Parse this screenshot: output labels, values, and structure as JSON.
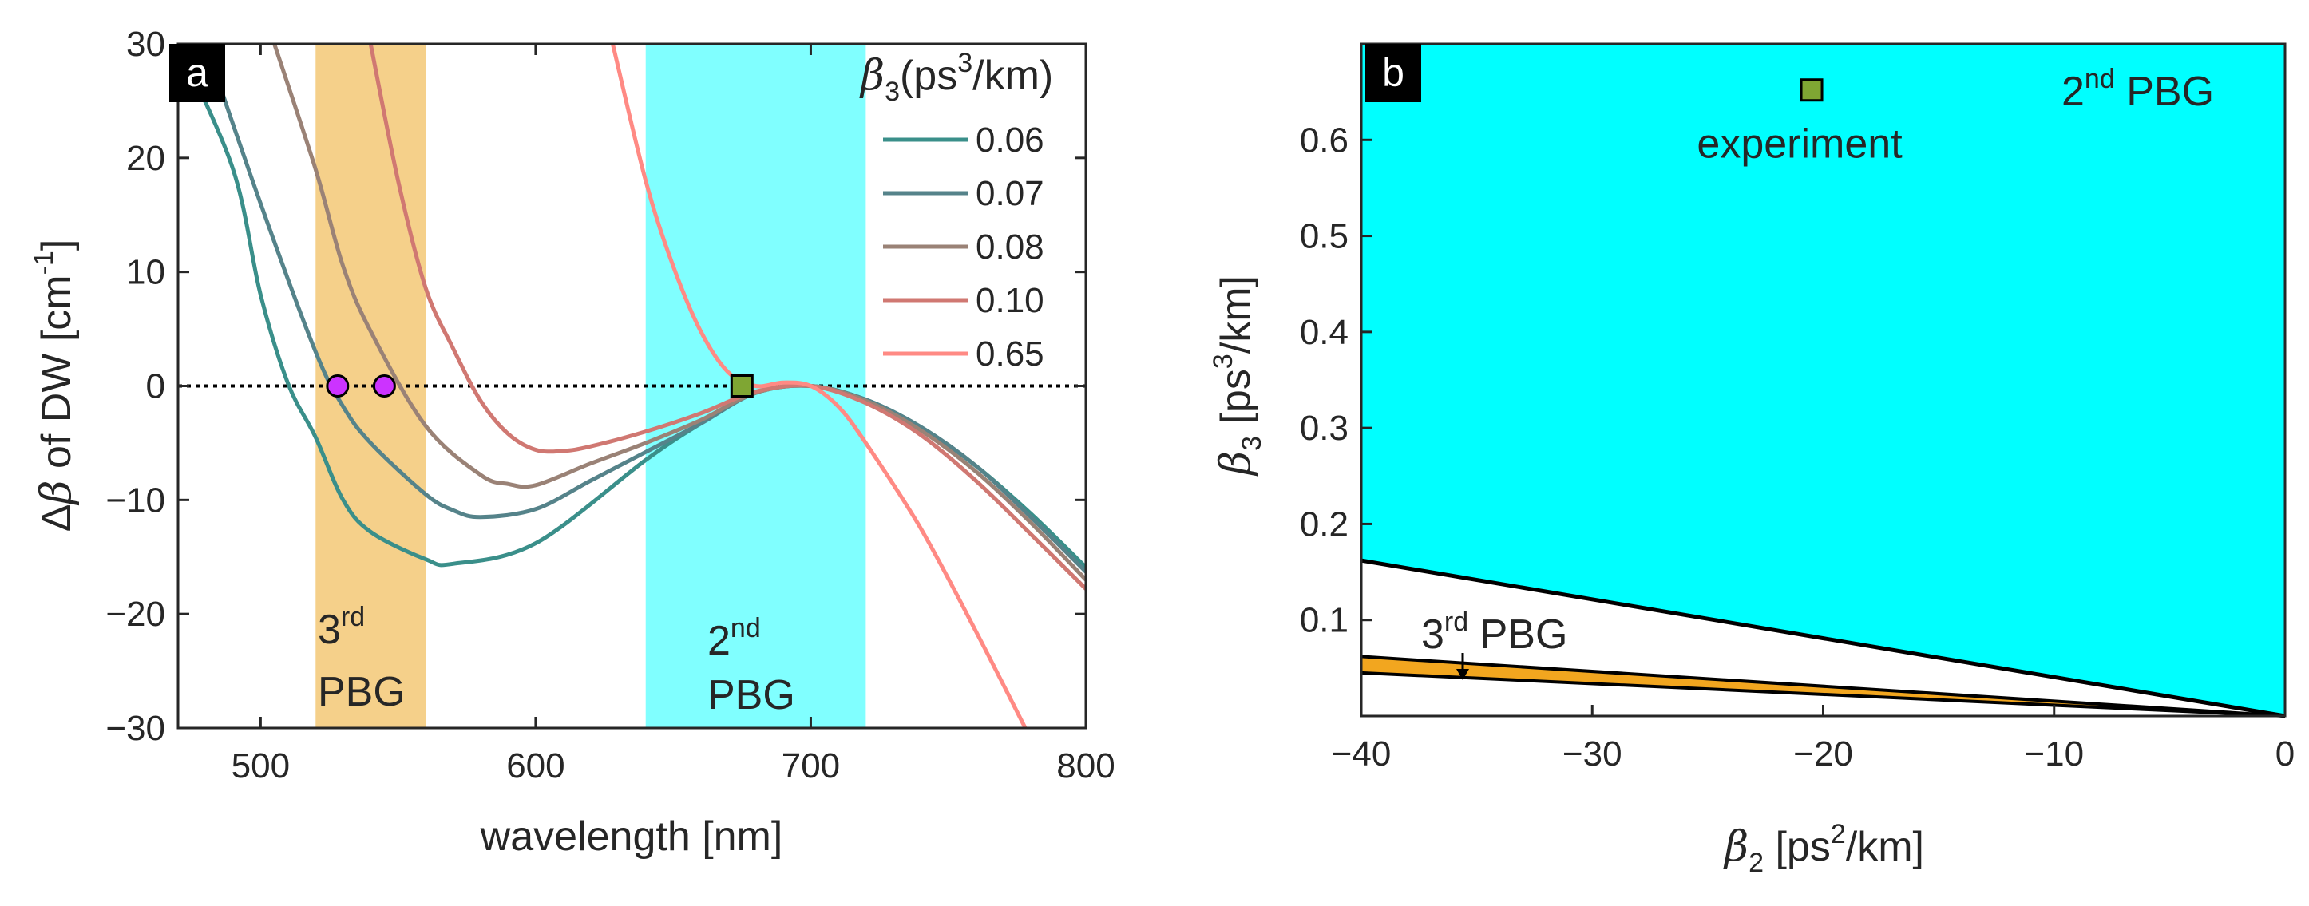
{
  "chart_data": [
    {
      "panel": "a",
      "type": "line",
      "xlabel": "wavelength [nm]",
      "ylabel": {
        "prefix": "Δ",
        "sym": "β",
        "rest": " of DW [cm",
        "sup": "-1",
        "close": "]"
      },
      "xlim": [
        470,
        800
      ],
      "ylim": [
        -30,
        30
      ],
      "xticks": [
        "500",
        "600",
        "700",
        "800"
      ],
      "yticks": [
        "30",
        "20",
        "10",
        "0",
        "−10",
        "−20",
        "−30"
      ],
      "bands": [
        {
          "name": "3rd PBG",
          "x": [
            520,
            560
          ],
          "color": "#f5d08a",
          "line1": "3",
          "sup": "rd",
          "line2": "PBG"
        },
        {
          "name": "2nd PBG",
          "x": [
            640,
            720
          ],
          "color": "#80ffff",
          "line1": "2",
          "sup": "nd",
          "line2": "PBG"
        }
      ],
      "zero_line": true,
      "legend": {
        "title_sym": "β",
        "title_sub": "3",
        "title_rest": "(ps",
        "title_sup": "3",
        "title_end": "/km)"
      },
      "series": [
        {
          "name": "0.06",
          "color": "#3a8f8a",
          "points": [
            [
              470,
              30
            ],
            [
              490,
              19
            ],
            [
              500,
              8
            ],
            [
              510,
              0.2
            ],
            [
              520,
              -4.5
            ],
            [
              530,
              -10
            ],
            [
              540,
              -12.8
            ],
            [
              560,
              -15.2
            ],
            [
              570,
              -15.6
            ],
            [
              600,
              -13.8
            ],
            [
              640,
              -6.5
            ],
            [
              660,
              -3.3
            ],
            [
              680,
              -0.6
            ],
            [
              700,
              0
            ],
            [
              720,
              -1.2
            ],
            [
              740,
              -3.6
            ],
            [
              760,
              -7
            ],
            [
              780,
              -11.2
            ],
            [
              800,
              -15.9
            ]
          ]
        },
        {
          "name": "0.07",
          "color": "#55838a",
          "points": [
            [
              480,
              30
            ],
            [
              500,
              16
            ],
            [
              520,
              3
            ],
            [
              530,
              -1.8
            ],
            [
              540,
              -5
            ],
            [
              560,
              -9.5
            ],
            [
              570,
              -10.9
            ],
            [
              580,
              -11.5
            ],
            [
              600,
              -10.8
            ],
            [
              620,
              -8.3
            ],
            [
              640,
              -5.8
            ],
            [
              660,
              -3.3
            ],
            [
              680,
              -0.6
            ],
            [
              700,
              0
            ],
            [
              720,
              -1.2
            ],
            [
              740,
              -3.6
            ],
            [
              760,
              -7
            ],
            [
              780,
              -11.5
            ],
            [
              800,
              -16.3
            ]
          ]
        },
        {
          "name": "0.08",
          "color": "#9a8276",
          "points": [
            [
              505,
              30
            ],
            [
              520,
              19
            ],
            [
              530,
              10.5
            ],
            [
              540,
              4.8
            ],
            [
              560,
              -3.5
            ],
            [
              580,
              -7.8
            ],
            [
              590,
              -8.6
            ],
            [
              600,
              -8.7
            ],
            [
              620,
              -6.8
            ],
            [
              640,
              -5
            ],
            [
              660,
              -3
            ],
            [
              680,
              -0.6
            ],
            [
              700,
              0
            ],
            [
              720,
              -1.3
            ],
            [
              740,
              -3.9
            ],
            [
              760,
              -7.5
            ],
            [
              780,
              -12
            ],
            [
              800,
              -17
            ]
          ]
        },
        {
          "name": "0.10",
          "color": "#d07872",
          "points": [
            [
              540,
              30
            ],
            [
              550,
              18
            ],
            [
              560,
              8.6
            ],
            [
              570,
              3.3
            ],
            [
              580,
              -1.3
            ],
            [
              590,
              -4.2
            ],
            [
              600,
              -5.6
            ],
            [
              610,
              -5.7
            ],
            [
              620,
              -5.3
            ],
            [
              640,
              -4
            ],
            [
              660,
              -2.4
            ],
            [
              680,
              -0.5
            ],
            [
              700,
              0
            ],
            [
              720,
              -1.5
            ],
            [
              740,
              -4.3
            ],
            [
              760,
              -8.3
            ],
            [
              780,
              -13
            ],
            [
              800,
              -17.8
            ]
          ]
        },
        {
          "name": "0.65",
          "color": "#ff8a84",
          "points": [
            [
              628,
              30
            ],
            [
              640,
              18
            ],
            [
              650,
              10.5
            ],
            [
              660,
              4.8
            ],
            [
              670,
              1.2
            ],
            [
              680,
              0
            ],
            [
              690,
              0.3
            ],
            [
              700,
              0
            ],
            [
              710,
              -1.8
            ],
            [
              720,
              -5
            ],
            [
              740,
              -12.5
            ],
            [
              760,
              -21.5
            ],
            [
              778,
              -30
            ]
          ]
        }
      ],
      "markers": [
        {
          "x": 528,
          "y": 0,
          "shape": "circle",
          "color": "#cc33ff"
        },
        {
          "x": 545,
          "y": 0,
          "shape": "circle",
          "color": "#cc33ff"
        },
        {
          "x": 675,
          "y": 0,
          "shape": "square",
          "color": "#7fa633"
        }
      ]
    },
    {
      "panel": "b",
      "type": "area",
      "xlabel": {
        "sym": "β",
        "sub": "2",
        "rest": " [ps",
        "sup": "2",
        "end": "/km]"
      },
      "ylabel": {
        "sym": "β",
        "sub": "3",
        "rest": " [ps",
        "sup": "3",
        "end": "/km]"
      },
      "xlim": [
        -40,
        0
      ],
      "ylim": [
        0,
        0.7
      ],
      "xticks": [
        "−40",
        "−30",
        "−20",
        "−10",
        "0"
      ],
      "yticks": [
        "0.6",
        "0.5",
        "0.4",
        "0.3",
        "0.2",
        "0.1"
      ],
      "regions": [
        {
          "name": "2nd PBG",
          "color": "#00ffff",
          "lower_boundary": [
            [
              -40,
              0.162
            ],
            [
              0,
              0
            ]
          ]
        },
        {
          "name": "3rd PBG",
          "color": "#f2a61f",
          "lower_boundary": [
            [
              -40,
              0.045
            ],
            [
              0,
              0
            ]
          ],
          "upper_boundary": [
            [
              -40,
              0.062
            ],
            [
              0,
              0
            ]
          ]
        }
      ],
      "marker": {
        "x": -20.5,
        "y": 0.652,
        "shape": "square",
        "color": "#7fa633",
        "label": "experiment"
      },
      "region_labels": {
        "second": {
          "line1": "2",
          "sup": "nd",
          "line2": " PBG"
        },
        "third": {
          "line1": "3",
          "sup": "rd",
          "line2": " PBG"
        }
      }
    }
  ]
}
